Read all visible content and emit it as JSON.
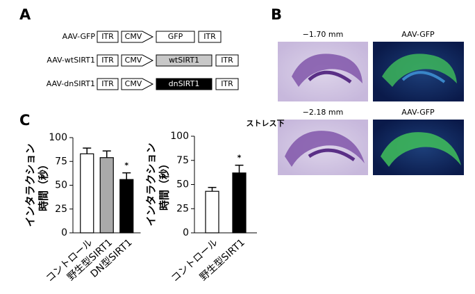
{
  "panel_labels": [
    "A",
    "B",
    "C"
  ],
  "constructs": [
    {
      "name": "AAV-GFP",
      "parts": [
        "ITR",
        "CMV",
        "GFP",
        "ITR"
      ],
      "gene_color": "#ffffff",
      "gene_text_color": "#000000"
    },
    {
      "name": "AAV-wtSIRT1",
      "parts": [
        "ITR",
        "CMV",
        "wtSIRT1",
        "ITR"
      ],
      "gene_color": "#c8c8c8",
      "gene_text_color": "#000000"
    },
    {
      "name": "AAV-dnSIRT1",
      "parts": [
        "ITR",
        "CMV",
        "dnSIRT1",
        "ITR"
      ],
      "gene_color": "#000000",
      "gene_text_color": "#ffffff"
    }
  ],
  "images": [
    {
      "position": "−1.70 mm",
      "label": "AAV-GFP"
    },
    {
      "position": "−2.18 mm",
      "label": "AAV-GFP"
    }
  ],
  "chart_data": [
    {
      "type": "bar",
      "ylabel": [
        "インタラクション",
        "時間（秒）"
      ],
      "categories": [
        "コントロール",
        "野生型SIRT1",
        "DN型SIRT1"
      ],
      "values": [
        83,
        79,
        56
      ],
      "errors": [
        6,
        7,
        7
      ],
      "colors": [
        "#ffffff",
        "#aaaaaa",
        "#000000"
      ],
      "ylim": [
        0,
        100
      ],
      "yticks": [
        0,
        25,
        50,
        75,
        100
      ],
      "annotations": [
        {
          "category": "DN型SIRT1",
          "text": "*"
        }
      ]
    },
    {
      "type": "bar",
      "title": "ストレス下",
      "ylabel": [
        "インタラクション",
        "時間（秒）"
      ],
      "categories": [
        "コントロール",
        "野生型SIRT1"
      ],
      "values": [
        43,
        62
      ],
      "errors": [
        4,
        8
      ],
      "colors": [
        "#ffffff",
        "#000000"
      ],
      "ylim": [
        0,
        100
      ],
      "yticks": [
        0,
        25,
        50,
        75,
        100
      ],
      "annotations": [
        {
          "category": "野生型SIRT1",
          "text": "*"
        }
      ]
    }
  ]
}
